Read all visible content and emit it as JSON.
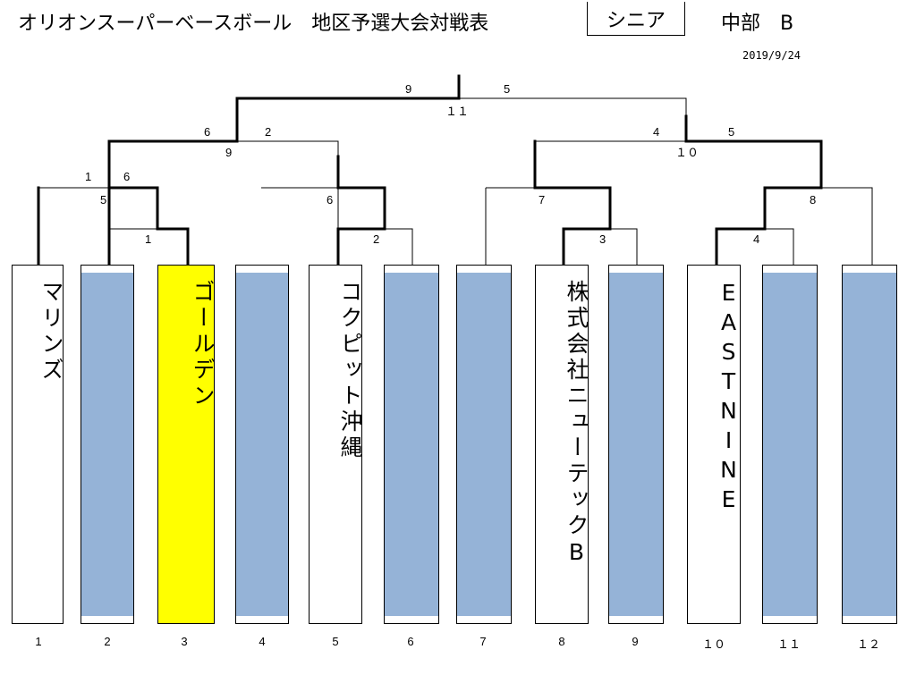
{
  "header": {
    "title": "オリオンスーパーベースボール　地区予選大会対戦表",
    "division": "シニア",
    "block": "中部　B",
    "date": "2019/9/24"
  },
  "slots": [
    {
      "number": "1",
      "team": "マリンズ",
      "state": "team"
    },
    {
      "number": "2",
      "team": "",
      "state": "empty"
    },
    {
      "number": "3",
      "team": "ゴールデン",
      "state": "highlight"
    },
    {
      "number": "4",
      "team": "",
      "state": "empty"
    },
    {
      "number": "5",
      "team": "コクピット沖縄",
      "state": "team"
    },
    {
      "number": "6",
      "team": "",
      "state": "empty"
    },
    {
      "number": "7",
      "team": "",
      "state": "empty"
    },
    {
      "number": "8",
      "team": "株式会社ニューテックB",
      "state": "team"
    },
    {
      "number": "9",
      "team": "",
      "state": "empty"
    },
    {
      "number": "１０",
      "team": "EASTNINE",
      "state": "team"
    },
    {
      "number": "１１",
      "team": "",
      "state": "empty"
    },
    {
      "number": "１２",
      "team": "",
      "state": "empty"
    }
  ],
  "games": {
    "g1": {
      "label": "1"
    },
    "g2": {
      "label": "2"
    },
    "g3": {
      "label": "3"
    },
    "g4": {
      "label": "4"
    },
    "g5": {
      "label": "5",
      "left_score": "1",
      "right_score": "6"
    },
    "g6": {
      "label": "6"
    },
    "g7": {
      "label": "7"
    },
    "g8": {
      "label": "8"
    },
    "g9": {
      "label": "9",
      "left_score": "6",
      "right_score": "2"
    },
    "g10": {
      "label": "１０",
      "left_score": "4",
      "right_score": "5"
    },
    "g11": {
      "label": "１１",
      "left_score": "9",
      "right_score": "5"
    }
  },
  "colors": {
    "empty_fill": "#95b3d7",
    "highlight": "#ffff00",
    "line": "#000000"
  }
}
